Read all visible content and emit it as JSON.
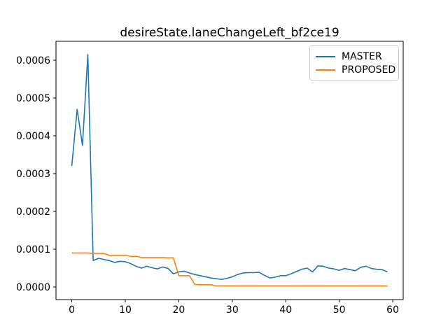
{
  "figure": {
    "background": "#ffffff",
    "spine_color": "#000000"
  },
  "chart_data": {
    "type": "line",
    "title": "desireState.laneChangeLeft_bf2ce19",
    "xlabel": "",
    "ylabel": "",
    "grid": false,
    "legend_position": "upper right",
    "xlim": [
      -2.95,
      61.95
    ],
    "ylim": [
      -3.33e-05,
      0.00065
    ],
    "x_ticks": [
      0,
      10,
      20,
      30,
      40,
      50,
      60
    ],
    "x_tick_labels": [
      "0",
      "10",
      "20",
      "30",
      "40",
      "50",
      "60"
    ],
    "y_ticks": [
      0.0,
      0.0001,
      0.0002,
      0.0003,
      0.0004,
      0.0005,
      0.0006
    ],
    "y_tick_labels": [
      "0.0000",
      "0.0001",
      "0.0002",
      "0.0003",
      "0.0004",
      "0.0005",
      "0.0006"
    ],
    "x": [
      0,
      1,
      2,
      3,
      4,
      5,
      6,
      7,
      8,
      9,
      10,
      11,
      12,
      13,
      14,
      15,
      16,
      17,
      18,
      19,
      20,
      21,
      22,
      23,
      24,
      25,
      26,
      27,
      28,
      29,
      30,
      31,
      32,
      33,
      34,
      35,
      36,
      37,
      38,
      39,
      40,
      41,
      42,
      43,
      44,
      45,
      46,
      47,
      48,
      49,
      50,
      51,
      52,
      53,
      54,
      55,
      56,
      57,
      58,
      59
    ],
    "series": [
      {
        "name": "MASTER",
        "color": "#1f77b4",
        "values": [
          0.00032,
          0.00047,
          0.000375,
          0.000615,
          7e-05,
          7.6e-05,
          7.3e-05,
          7e-05,
          6.5e-05,
          6.8e-05,
          6.7e-05,
          6.2e-05,
          5.5e-05,
          5e-05,
          5.5e-05,
          5.1e-05,
          4.8e-05,
          5.3e-05,
          4.9e-05,
          3.5e-05,
          4e-05,
          4.2e-05,
          3.7e-05,
          3.3e-05,
          3e-05,
          2.7e-05,
          2.4e-05,
          2.2e-05,
          2e-05,
          2.3e-05,
          2.7e-05,
          3.3e-05,
          3.7e-05,
          3.8e-05,
          3.8e-05,
          3.9e-05,
          3.1e-05,
          2.4e-05,
          2.6e-05,
          3e-05,
          3e-05,
          3.5e-05,
          4.1e-05,
          4.7e-05,
          5e-05,
          4e-05,
          5.6e-05,
          5.5e-05,
          5e-05,
          4.8e-05,
          4.4e-05,
          4.9e-05,
          4.6e-05,
          4.3e-05,
          5.2e-05,
          5.5e-05,
          4.9e-05,
          4.7e-05,
          4.6e-05,
          4e-05
        ]
      },
      {
        "name": "PROPOSED",
        "color": "#ff7f0e",
        "values": [
          9e-05,
          9e-05,
          9e-05,
          9e-05,
          8.9e-05,
          8.9e-05,
          8.9e-05,
          8.4e-05,
          8.4e-05,
          8.4e-05,
          8.4e-05,
          8.1e-05,
          8.1e-05,
          7.8e-05,
          7.8e-05,
          7.8e-05,
          7.8e-05,
          7.8e-05,
          7.7e-05,
          7.7e-05,
          3e-05,
          3e-05,
          3e-05,
          7e-06,
          6e-06,
          6e-06,
          6e-06,
          3e-06,
          3e-06,
          3e-06,
          3e-06,
          3e-06,
          3e-06,
          3e-06,
          3e-06,
          3e-06,
          3e-06,
          3e-06,
          3e-06,
          3e-06,
          3e-06,
          3e-06,
          3e-06,
          3e-06,
          3e-06,
          3e-06,
          3e-06,
          3e-06,
          3e-06,
          3e-06,
          3e-06,
          3e-06,
          3e-06,
          3e-06,
          3e-06,
          3e-06,
          3e-06,
          3e-06,
          3e-06,
          3e-06
        ]
      }
    ]
  }
}
